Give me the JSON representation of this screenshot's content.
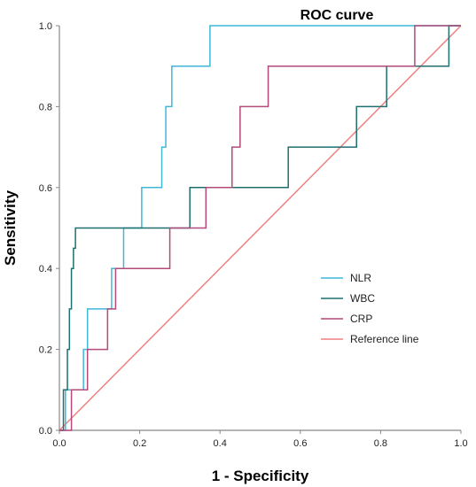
{
  "chart_data": {
    "type": "line",
    "title": "ROC curve",
    "xlabel": "1 - Specificity",
    "ylabel": "Sensitivity",
    "xlim": [
      0,
      1
    ],
    "ylim": [
      0,
      1
    ],
    "xticks": [
      "0.0",
      "0.2",
      "0.4",
      "0.6",
      "0.8",
      "1.0"
    ],
    "yticks": [
      "0.0",
      "0.2",
      "0.4",
      "0.6",
      "0.8",
      "1.0"
    ],
    "grid": false,
    "legend_position": "right",
    "series": [
      {
        "name": "NLR",
        "color": "#3fb7d9",
        "x": [
          0,
          0.015,
          0.015,
          0.03,
          0.03,
          0.06,
          0.06,
          0.07,
          0.07,
          0.13,
          0.13,
          0.16,
          0.16,
          0.205,
          0.205,
          0.255,
          0.255,
          0.265,
          0.265,
          0.27,
          0.27,
          0.28,
          0.28,
          0.295,
          0.295,
          0.375,
          0.375,
          1.0
        ],
        "y": [
          0,
          0,
          0.1,
          0.1,
          0.1,
          0.1,
          0.2,
          0.2,
          0.3,
          0.3,
          0.4,
          0.4,
          0.5,
          0.5,
          0.6,
          0.6,
          0.7,
          0.7,
          0.8,
          0.8,
          0.8,
          0.8,
          0.9,
          0.9,
          0.9,
          0.9,
          1.0,
          1.0
        ]
      },
      {
        "name": "WBC",
        "color": "#1f6f6f",
        "x": [
          0,
          0.01,
          0.01,
          0.02,
          0.02,
          0.025,
          0.025,
          0.03,
          0.03,
          0.035,
          0.035,
          0.04,
          0.04,
          0.325,
          0.325,
          0.57,
          0.57,
          0.74,
          0.74,
          0.815,
          0.815,
          0.97,
          0.97,
          1.0
        ],
        "y": [
          0,
          0,
          0.1,
          0.1,
          0.2,
          0.2,
          0.3,
          0.3,
          0.4,
          0.4,
          0.45,
          0.45,
          0.5,
          0.5,
          0.6,
          0.6,
          0.7,
          0.7,
          0.8,
          0.8,
          0.9,
          0.9,
          1.0,
          1.0
        ]
      },
      {
        "name": "CRP",
        "color": "#b24a7a",
        "x": [
          0,
          0.03,
          0.03,
          0.07,
          0.07,
          0.12,
          0.12,
          0.14,
          0.14,
          0.275,
          0.275,
          0.365,
          0.365,
          0.43,
          0.43,
          0.45,
          0.45,
          0.52,
          0.52,
          0.885,
          0.885,
          1.0
        ],
        "y": [
          0,
          0,
          0.1,
          0.1,
          0.2,
          0.2,
          0.3,
          0.3,
          0.4,
          0.4,
          0.5,
          0.5,
          0.6,
          0.6,
          0.7,
          0.7,
          0.8,
          0.8,
          0.9,
          0.9,
          1.0,
          1.0
        ]
      },
      {
        "name": "Reference line",
        "color": "#f08080",
        "x": [
          0,
          1
        ],
        "y": [
          0,
          1
        ]
      }
    ]
  }
}
